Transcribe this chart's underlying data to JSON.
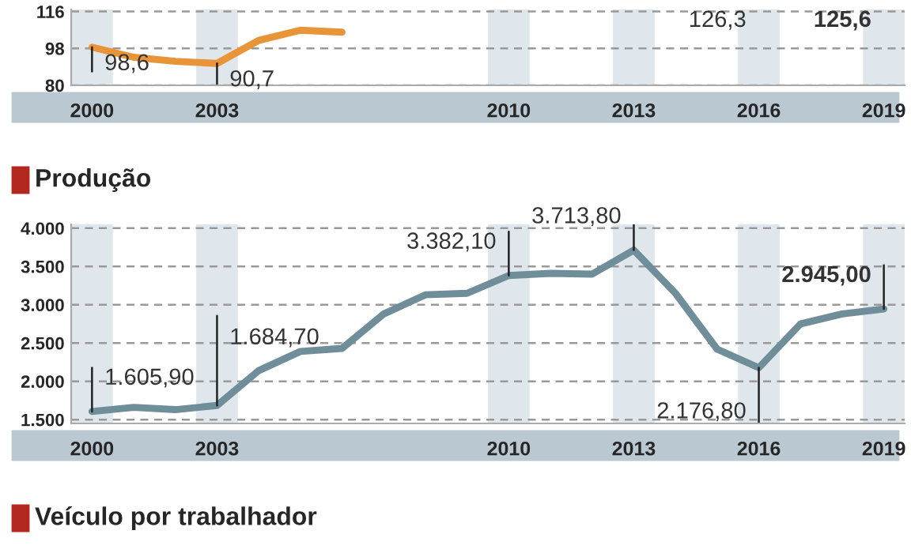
{
  "chart_data": [
    {
      "type": "line",
      "x": [
        2000,
        2001,
        2002,
        2003,
        2004,
        2005,
        2006
      ],
      "series": [
        {
          "color": "#e8953a",
          "values": [
            98.6,
            93.7,
            91.7,
            90.7,
            101.9,
            106.9,
            105.9
          ],
          "value_labels": [
            "98,6",
            null,
            null,
            "90,7",
            null,
            null,
            null
          ]
        }
      ],
      "xlim": [
        1999.5,
        2019.5
      ],
      "xticks": [
        2000,
        2003,
        2010,
        2013,
        2016,
        2019
      ],
      "ylim": [
        80,
        117
      ],
      "yticks": [
        80,
        98,
        116
      ],
      "grid": "y",
      "bands": [
        {
          "axis": "x",
          "from": 1999.5,
          "to": 2000.5
        },
        {
          "axis": "x",
          "from": 2002.5,
          "to": 2003.5
        },
        {
          "axis": "x",
          "from": 2009.5,
          "to": 2010.5
        },
        {
          "axis": "x",
          "from": 2012.5,
          "to": 2013.5
        },
        {
          "axis": "x",
          "from": 2015.5,
          "to": 2016.5
        },
        {
          "axis": "x",
          "from": 2018.5,
          "to": 2019.5
        }
      ],
      "annotations": [
        "126,3",
        "125,6"
      ]
    },
    {
      "type": "line",
      "title": "Produção",
      "x": [
        2000,
        2001,
        2002,
        2003,
        2004,
        2005,
        2006,
        2007,
        2008,
        2009,
        2010,
        2011,
        2012,
        2013,
        2014,
        2015,
        2016,
        2017,
        2018,
        2019
      ],
      "series": [
        {
          "color": "#6f8e99",
          "values": [
            1605.9,
            1660,
            1630,
            1684.7,
            2140,
            2390,
            2430,
            2880,
            3130,
            3150,
            3382.1,
            3410,
            3400,
            3713.8,
            3150,
            2420,
            2176.8,
            2750,
            2880,
            2945.0
          ],
          "value_labels": [
            "1.605,90",
            null,
            null,
            "1.684,70",
            null,
            null,
            null,
            null,
            null,
            null,
            "3.382,10",
            null,
            null,
            "3.713,80",
            null,
            null,
            "2.176,80",
            null,
            null,
            "2.945,00"
          ]
        }
      ],
      "xlim": [
        1999.5,
        2019.5
      ],
      "xticks": [
        2000,
        2003,
        2010,
        2013,
        2016,
        2019
      ],
      "ylim": [
        1450,
        4050
      ],
      "yticks": [
        {
          "value": 1500,
          "label": "1.500"
        },
        {
          "value": 2000,
          "label": "2.000"
        },
        {
          "value": 2500,
          "label": "2.500"
        },
        {
          "value": 3000,
          "label": "3.000"
        },
        {
          "value": 3500,
          "label": "3.500"
        },
        {
          "value": 4000,
          "label": "4.000"
        }
      ],
      "grid": "y",
      "bands": [
        {
          "axis": "x",
          "from": 1999.5,
          "to": 2000.5
        },
        {
          "axis": "x",
          "from": 2002.5,
          "to": 2003.5
        },
        {
          "axis": "x",
          "from": 2009.5,
          "to": 2010.5
        },
        {
          "axis": "x",
          "from": 2012.5,
          "to": 2013.5
        },
        {
          "axis": "x",
          "from": 2015.5,
          "to": 2016.5
        },
        {
          "axis": "x",
          "from": 2018.5,
          "to": 2019.5
        }
      ]
    },
    {
      "type": "other",
      "title": "Veículo por trabalhador"
    }
  ]
}
